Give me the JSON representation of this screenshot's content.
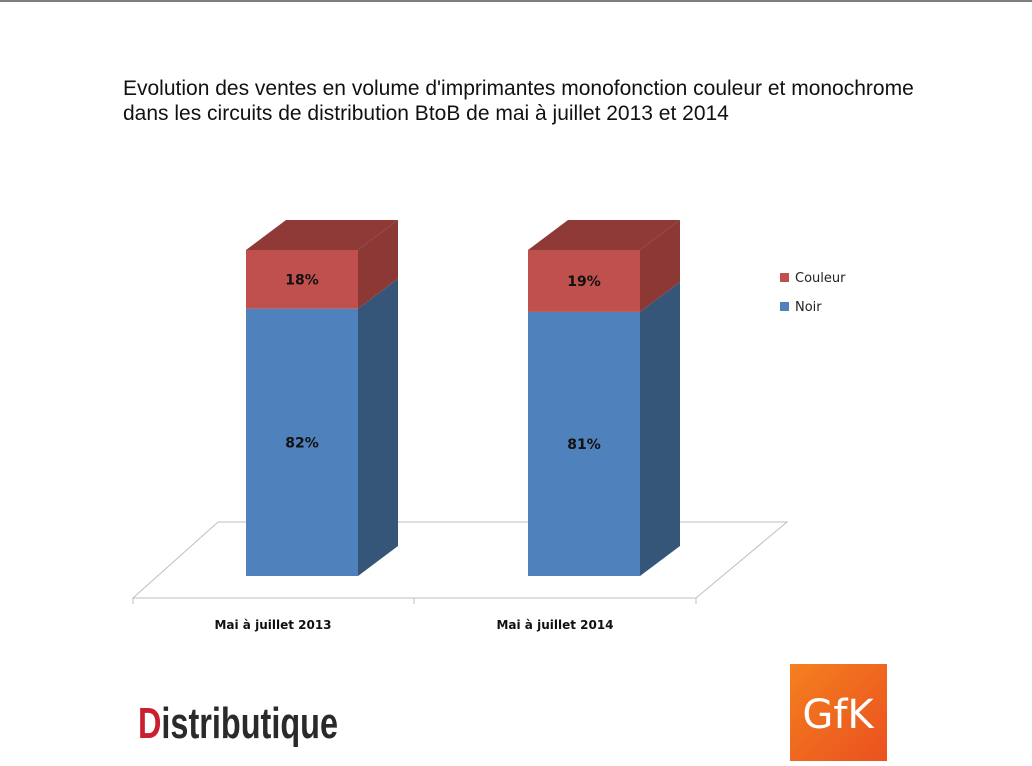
{
  "title": "Evolution des ventes en volume d'imprimantes monofonction  couleur et monochrome dans les circuits de distribution BtoB de mai à juillet 2013 et 2014",
  "chart_data": {
    "type": "bar",
    "stacked": true,
    "three_d": true,
    "categories": [
      "Mai à juillet 2013",
      "Mai à juillet 2014"
    ],
    "series": [
      {
        "name": "Noir",
        "values": [
          82,
          81
        ],
        "labels": [
          "82%",
          "81%"
        ],
        "color": "#4f81bd"
      },
      {
        "name": "Couleur",
        "values": [
          18,
          19
        ],
        "labels": [
          "18%",
          "19%"
        ],
        "color": "#c0504d"
      }
    ],
    "ylim": [
      0,
      100
    ],
    "grid": false,
    "legend": "right"
  },
  "legend": {
    "items": [
      {
        "name": "Couleur",
        "color": "#c0504d"
      },
      {
        "name": "Noir",
        "color": "#4f81bd"
      }
    ]
  },
  "logos": {
    "distributique": "Distributique",
    "gfk": "GfK"
  },
  "colors": {
    "couleur_front": "#c0504d",
    "couleur_side": "#8c3835",
    "couleur_top": "#8f3a37",
    "noir_front": "#4f81bd",
    "noir_side": "#355679",
    "gfk_orange": "#f26522"
  }
}
